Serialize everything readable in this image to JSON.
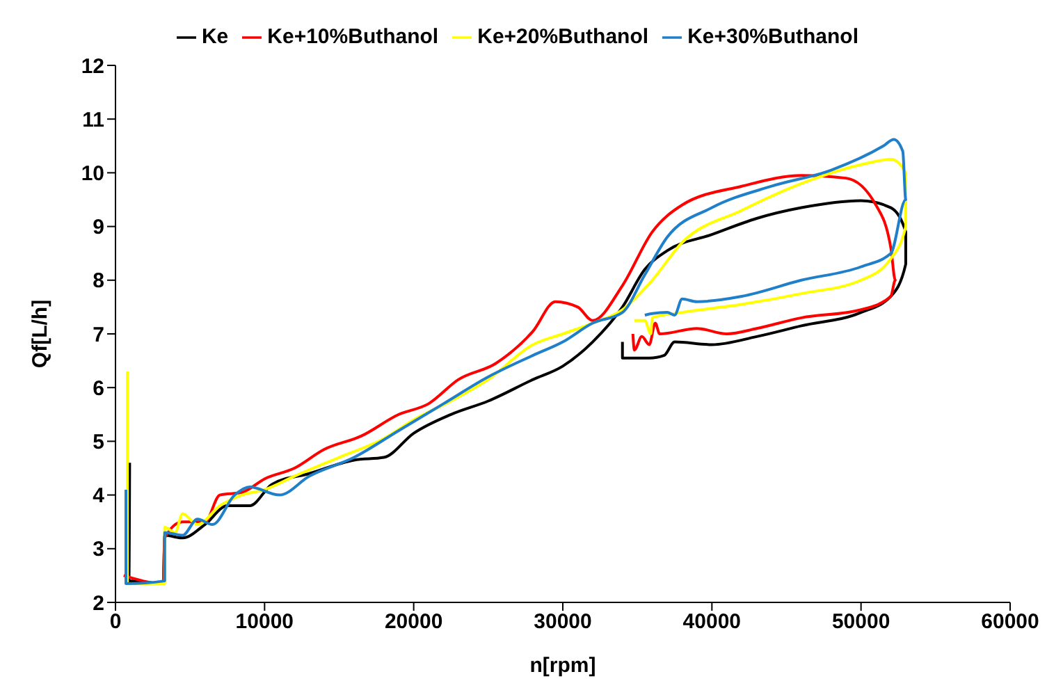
{
  "chart_data": {
    "type": "line",
    "xlabel": "n[rpm]",
    "ylabel": "Qf[L/h]",
    "xlim": [
      0,
      60000
    ],
    "xticks": [
      0,
      10000,
      20000,
      30000,
      40000,
      50000,
      60000
    ],
    "ylim": [
      2,
      12
    ],
    "yticks": [
      2,
      3,
      4,
      5,
      6,
      7,
      8,
      9,
      10,
      11,
      12
    ],
    "grid": false,
    "legend": "top",
    "marker": "none",
    "line_style": "solid",
    "series": [
      {
        "name": "Ke",
        "color": "#000000",
        "x": [
          950,
          900,
          3200,
          3300,
          4500,
          6000,
          7500,
          9000,
          10500,
          13000,
          16000,
          18000,
          20000,
          22500,
          25000,
          28000,
          30000,
          32000,
          34000,
          35500,
          37000,
          40000,
          43000,
          46000,
          50000,
          52000,
          53000,
          53000,
          52000,
          50000,
          46000,
          43000,
          40000,
          37500,
          36800,
          35800,
          34000,
          34000
        ],
        "values": [
          4.6,
          2.4,
          2.35,
          3.25,
          3.2,
          3.45,
          3.8,
          3.8,
          4.2,
          4.4,
          4.65,
          4.7,
          5.15,
          5.5,
          5.75,
          6.15,
          6.4,
          6.85,
          7.5,
          8.2,
          8.55,
          8.85,
          9.15,
          9.35,
          9.48,
          9.35,
          8.9,
          8.3,
          7.7,
          7.4,
          7.15,
          6.95,
          6.8,
          6.85,
          6.6,
          6.55,
          6.55,
          6.85
        ]
      },
      {
        "name": "Ke+10%Buthanol",
        "color": "#ff0000",
        "x": [
          550,
          3200,
          3300,
          4500,
          6000,
          7000,
          8500,
          10000,
          12000,
          14000,
          16500,
          19000,
          21000,
          23000,
          25500,
          28000,
          29500,
          31000,
          32000,
          34000,
          36000,
          38000,
          42000,
          46000,
          49000,
          51000,
          52000,
          52300,
          52000,
          50000,
          46000,
          43000,
          41000,
          39000,
          36500,
          36200,
          35800,
          35300,
          34800,
          34700
        ],
        "values": [
          2.5,
          2.35,
          3.2,
          3.5,
          3.5,
          4.0,
          4.05,
          4.3,
          4.5,
          4.85,
          5.1,
          5.5,
          5.7,
          6.15,
          6.45,
          7.05,
          7.6,
          7.5,
          7.25,
          7.9,
          8.9,
          9.4,
          9.75,
          9.95,
          9.9,
          9.4,
          8.6,
          8.0,
          7.7,
          7.45,
          7.3,
          7.1,
          7.0,
          7.1,
          7.0,
          7.2,
          6.8,
          6.95,
          6.7,
          7.0
        ]
      },
      {
        "name": "Ke+20%Buthanol",
        "color": "#ffff00",
        "x": [
          800,
          800,
          3300,
          3300,
          4000,
          4500,
          5500,
          7000,
          8500,
          10000,
          12000,
          15000,
          18000,
          20000,
          22500,
          25000,
          28000,
          30000,
          32000,
          34000,
          36000,
          38000,
          42000,
          46000,
          50000,
          52000,
          53000,
          53000,
          52000,
          50000,
          46000,
          42000,
          38000,
          36000,
          35900,
          35500,
          34800
        ],
        "values": [
          6.3,
          2.35,
          2.35,
          3.4,
          3.3,
          3.65,
          3.45,
          3.8,
          4.0,
          4.1,
          4.35,
          4.7,
          5.05,
          5.4,
          5.75,
          6.15,
          6.8,
          7.0,
          7.2,
          7.45,
          8.0,
          8.7,
          9.3,
          9.8,
          10.15,
          10.25,
          10.0,
          9.0,
          8.4,
          8.0,
          7.75,
          7.55,
          7.4,
          7.3,
          7.0,
          7.25,
          7.25
        ]
      },
      {
        "name": "Ke+30%Buthanol",
        "color": "#1f7fc8",
        "x": [
          700,
          700,
          3300,
          3300,
          4500,
          5500,
          6500,
          8000,
          9000,
          11000,
          13000,
          16000,
          19000,
          22000,
          25000,
          28000,
          30000,
          32000,
          34000,
          35500,
          37000,
          40000,
          44000,
          48000,
          51500,
          52200,
          52800,
          53000,
          52000,
          50000,
          46000,
          42000,
          39000,
          38000,
          37500,
          37000,
          36000,
          35500
        ],
        "values": [
          4.1,
          2.35,
          2.4,
          3.3,
          3.25,
          3.55,
          3.45,
          4.0,
          4.15,
          4.0,
          4.35,
          4.7,
          5.2,
          5.7,
          6.2,
          6.6,
          6.85,
          7.2,
          7.4,
          8.1,
          8.8,
          9.35,
          9.75,
          10.05,
          10.5,
          10.62,
          10.4,
          9.5,
          8.5,
          8.25,
          8.0,
          7.7,
          7.6,
          7.65,
          7.35,
          7.4,
          7.38,
          7.35
        ]
      }
    ]
  }
}
